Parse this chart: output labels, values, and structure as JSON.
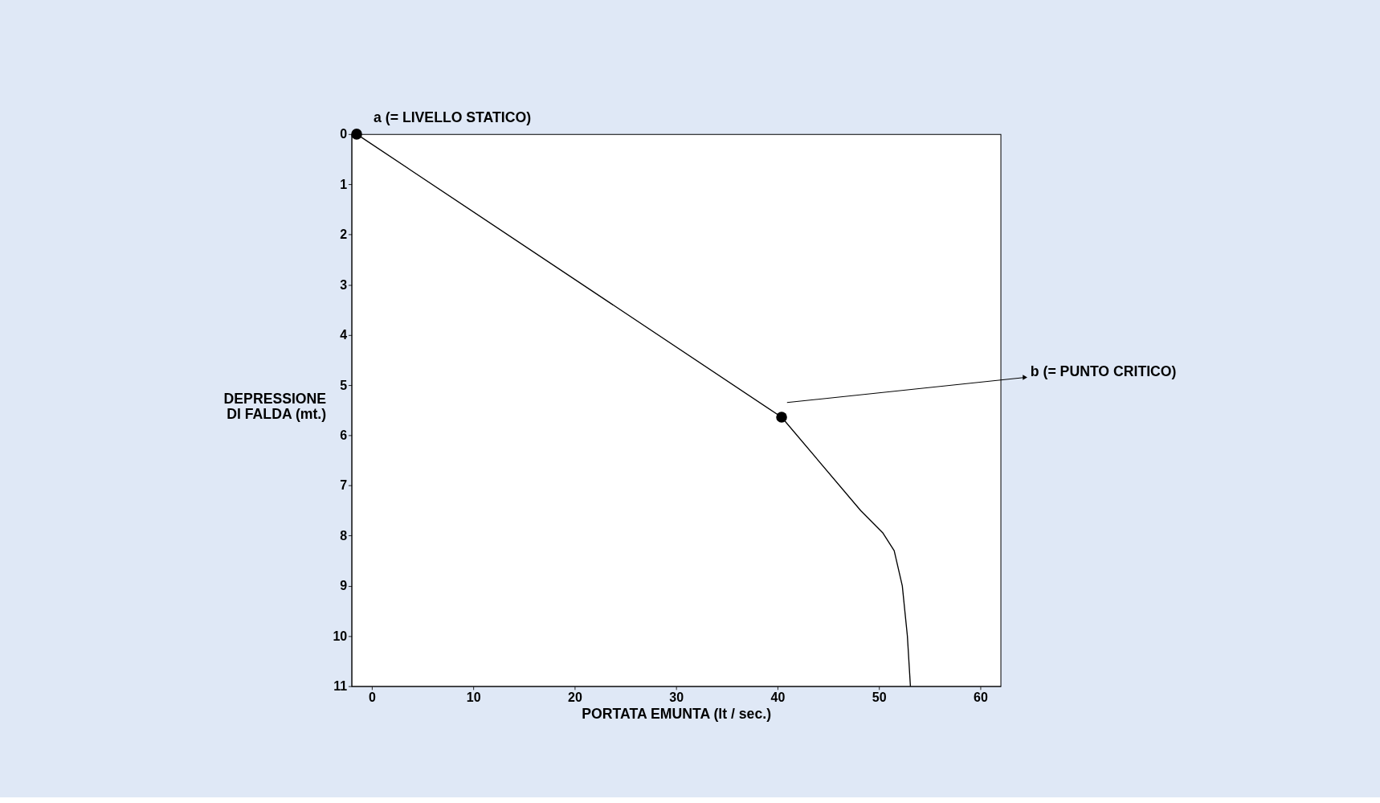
{
  "chart_data": {
    "type": "line",
    "xlabel": "PORTATA EMUNTA (lt / sec.)",
    "ylabel": "DEPRESSIONE DI FALDA (mt.)",
    "xlim": [
      -2,
      62
    ],
    "ylim": [
      11,
      0
    ],
    "xticks": [
      0,
      10,
      20,
      30,
      40,
      50,
      60
    ],
    "yticks": [
      0,
      1,
      2,
      3,
      4,
      5,
      6,
      7,
      8,
      9,
      10,
      11
    ],
    "grid": false,
    "series": [
      {
        "line_style": "solid",
        "color": "#000000",
        "x": [
          -1.5,
          40.4,
          48.2,
          50.4,
          51.5,
          52.3,
          52.8,
          53.1
        ],
        "values": [
          0,
          5.64,
          7.5,
          7.95,
          8.3,
          9,
          10,
          11
        ],
        "marker": "none"
      },
      {
        "type": "scatter",
        "color": "#000000",
        "x": [
          -1.5,
          40.4
        ],
        "values": [
          0,
          5.64
        ],
        "marker": "circle"
      }
    ],
    "annotations": [
      {
        "text": "a (= LIVELLO STATICO)",
        "x": -1.5,
        "y": 0
      },
      "b (= PUNTO CRITICO)"
    ]
  }
}
